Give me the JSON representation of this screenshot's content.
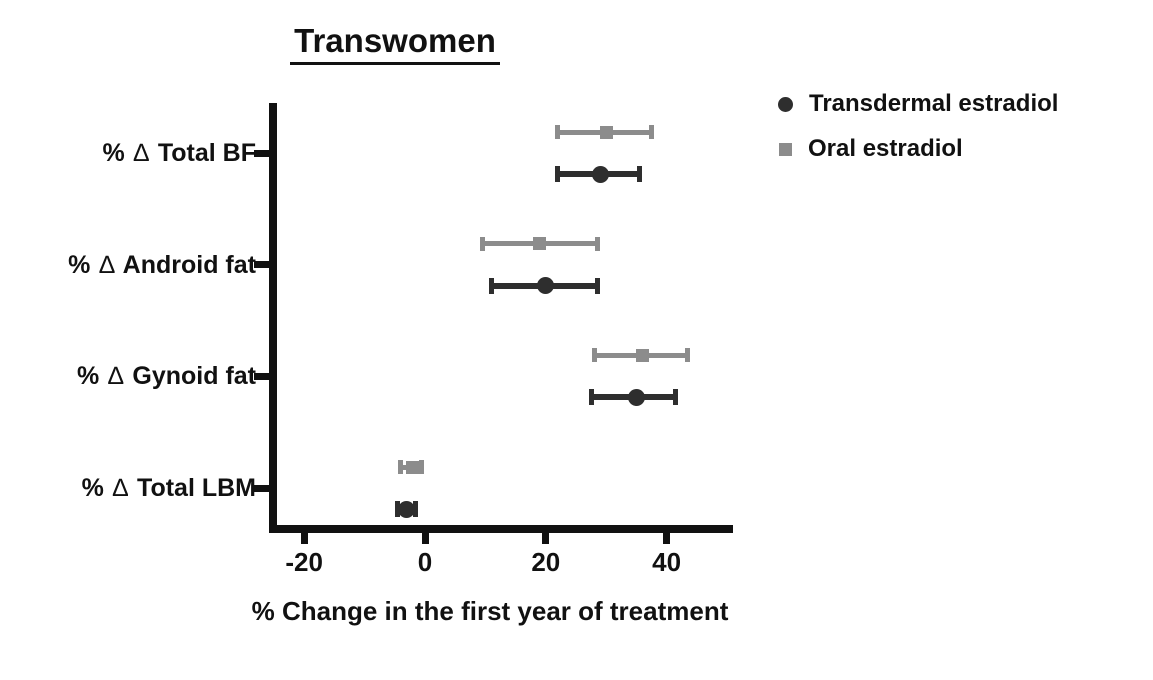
{
  "figure": {
    "background": "#ffffff",
    "text_color": "#111111",
    "axis_color": "#111111"
  },
  "chart_data": {
    "type": "scatter",
    "subtype": "forest-plot-dot-whisker",
    "title": "Transwomen",
    "xlabel": "% Change in the first year of treatment",
    "ylabel": "",
    "x_ticks": [
      -20,
      0,
      20,
      40
    ],
    "xlim": [
      -25,
      50
    ],
    "grid": false,
    "legend_position": "top-right",
    "categories": [
      "% ∆ Total BF",
      "% ∆ Android fat",
      "% ∆ Gynoid fat",
      "% ∆ Total LBM"
    ],
    "series": [
      {
        "name": "Transdermal estradiol",
        "marker": "circle",
        "color": "#2e2e2e",
        "points": [
          {
            "category": "% ∆ Total BF",
            "mean": 29,
            "lo": 22,
            "hi": 35.5
          },
          {
            "category": "% ∆ Android fat",
            "mean": 20,
            "lo": 11,
            "hi": 28.5
          },
          {
            "category": "% ∆ Gynoid fat",
            "mean": 35,
            "lo": 27.5,
            "hi": 41.5
          },
          {
            "category": "% ∆ Total LBM",
            "mean": -3,
            "lo": -4.5,
            "hi": -1.5
          }
        ]
      },
      {
        "name": "Oral estradiol",
        "marker": "square",
        "color": "#8c8c8c",
        "points": [
          {
            "category": "% ∆ Total BF",
            "mean": 30,
            "lo": 22,
            "hi": 37.5
          },
          {
            "category": "% ∆ Android fat",
            "mean": 19,
            "lo": 9.5,
            "hi": 28.5
          },
          {
            "category": "% ∆ Gynoid fat",
            "mean": 36,
            "lo": 28,
            "hi": 43.5
          },
          {
            "category": "% ∆ Total LBM",
            "mean": -2,
            "lo": -4,
            "hi": -0.5
          }
        ]
      }
    ]
  }
}
